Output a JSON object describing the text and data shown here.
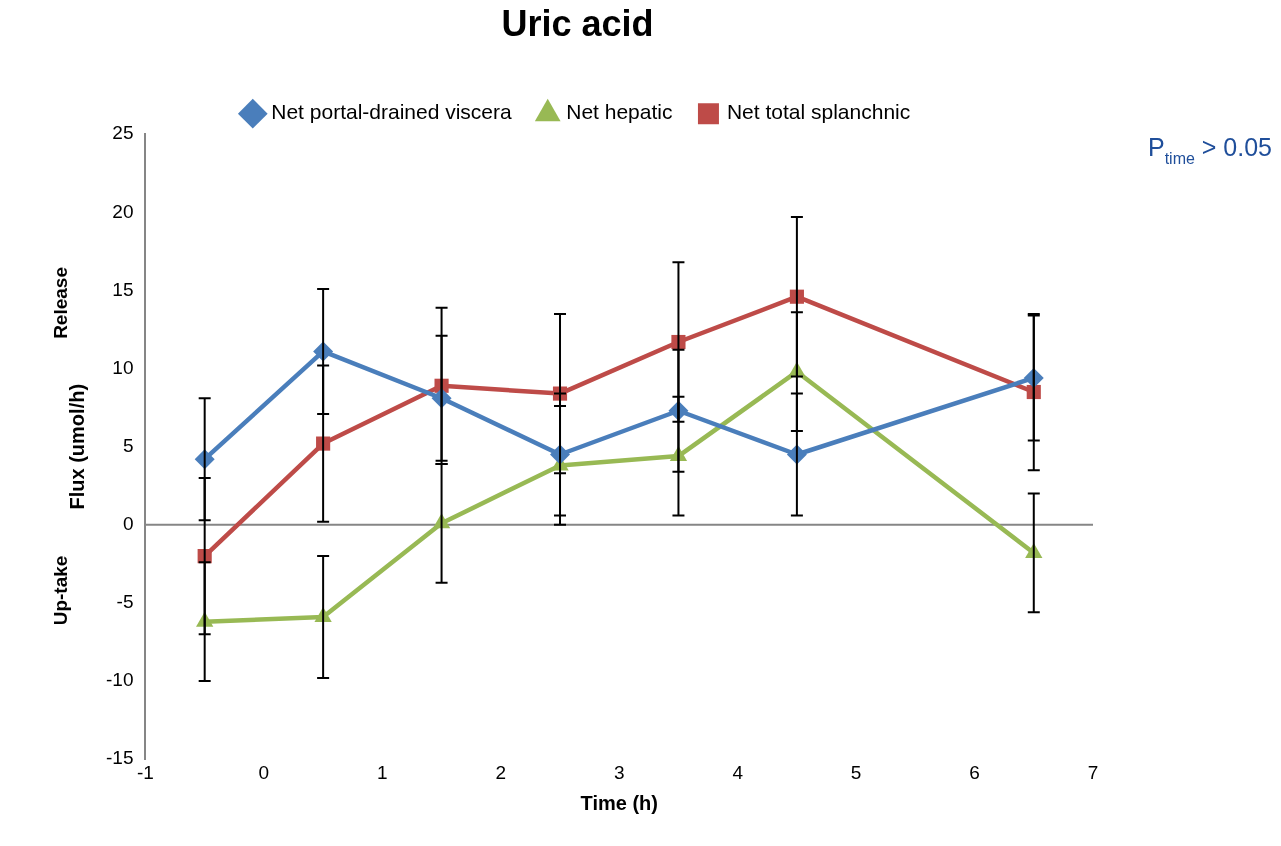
{
  "chart_data": {
    "type": "line",
    "title": "Uric acid",
    "xlabel": "Time (h)",
    "ylabel": "Flux (umol/h)",
    "x": [
      -0.5,
      0.5,
      1.5,
      2.5,
      3.5,
      4.5,
      6.5
    ],
    "series": [
      {
        "name": "Net portal-drained viscera",
        "color": "#4a7ebb",
        "marker": "diamond",
        "values": [
          4.2,
          11.1,
          8.1,
          4.5,
          7.3,
          4.5,
          9.4
        ],
        "errors": [
          3.9,
          4,
          4,
          3.9,
          3.9,
          3.9,
          4
        ]
      },
      {
        "name": "Net hepatic",
        "color": "#98b954",
        "marker": "triangle",
        "values": [
          -6.2,
          -5.9,
          0.1,
          3.8,
          4.4,
          9.8,
          -1.8
        ],
        "errors": [
          3.8,
          3.9,
          3.8,
          3.8,
          3.8,
          3.8,
          3.8
        ]
      },
      {
        "name": "Net total splanchnic",
        "color": "#be4b48",
        "marker": "square",
        "values": [
          -2,
          5.2,
          8.9,
          8.4,
          11.7,
          14.6,
          8.5
        ],
        "errors": [
          5,
          5,
          5,
          5.1,
          5.1,
          5.1,
          5
        ]
      }
    ],
    "xlim": [
      -1,
      7
    ],
    "xticks": [
      -1,
      0,
      1,
      2,
      3,
      4,
      5,
      6,
      7
    ],
    "ylim": [
      -15,
      25
    ],
    "yticks": [
      -15,
      -10,
      -5,
      0,
      5,
      10,
      15,
      20,
      25
    ],
    "ref_lines": [
      {
        "axis": "y",
        "value": 0,
        "color": "#868686"
      }
    ],
    "annotations": [
      "Release",
      "Up-take",
      "P$_{time}$ > 0.05"
    ],
    "grid": false,
    "legend": "top",
    "line_style": "solid"
  }
}
